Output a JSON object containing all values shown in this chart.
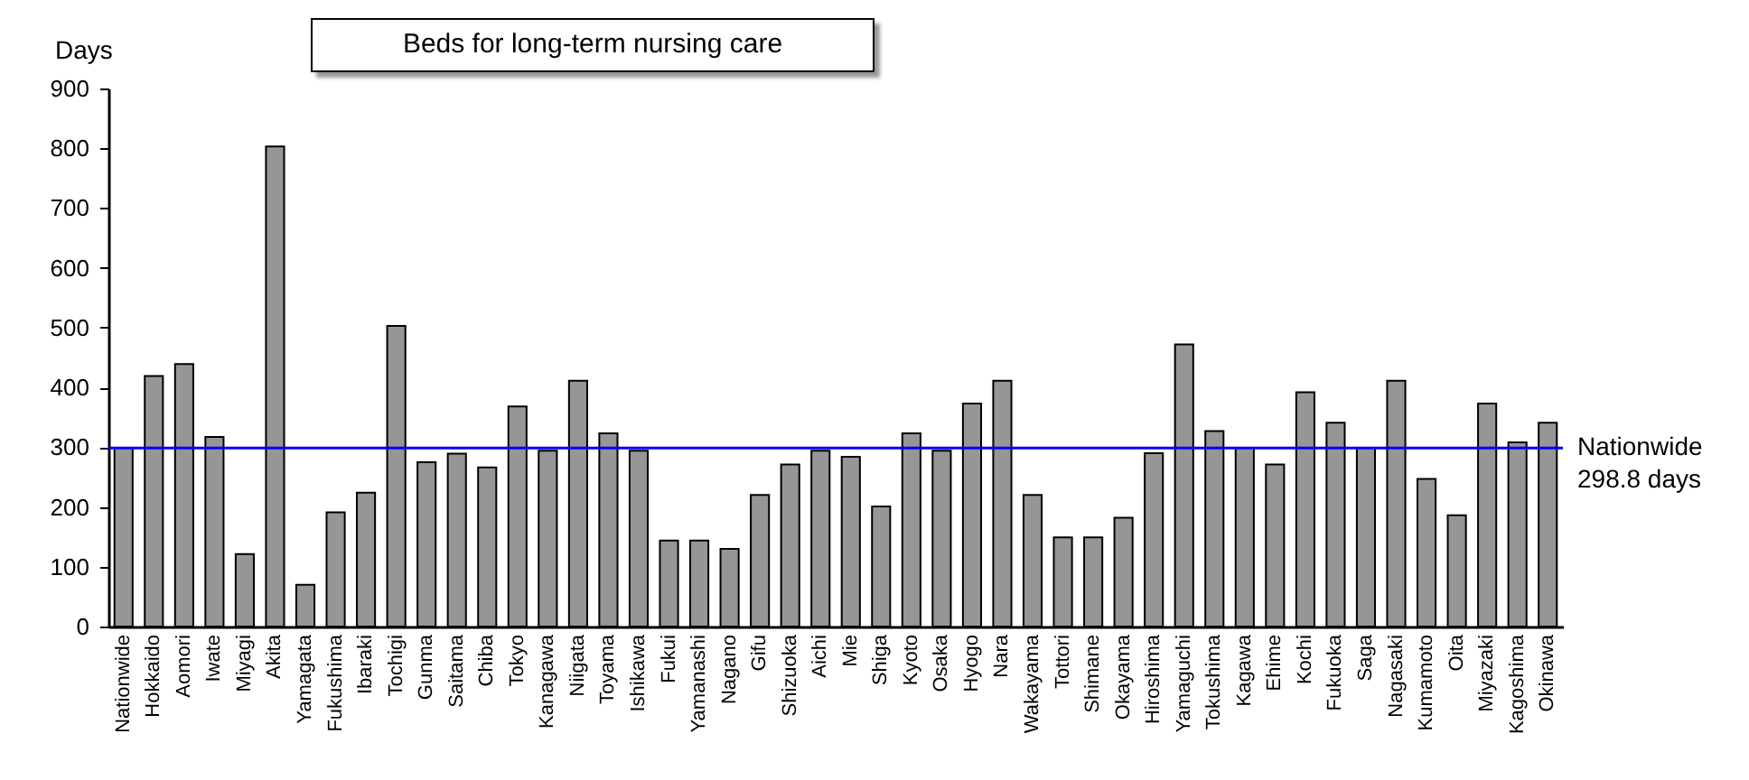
{
  "chart_data": {
    "type": "bar",
    "title": "Beds for long-term nursing care",
    "ylabel": "Days",
    "categories": [
      "Nationwide",
      "Hokkaido",
      "Aomori",
      "Iwate",
      "Miyagi",
      "Akita",
      "Yamagata",
      "Fukushima",
      "Ibaraki",
      "Tochigi",
      "Gunma",
      "Saitama",
      "Chiba",
      "Tokyo",
      "Kanagawa",
      "Niigata",
      "Toyama",
      "Ishikawa",
      "Fukui",
      "Yamanashi",
      "Nagano",
      "Gifu",
      "Shizuoka",
      "Aichi",
      "Mie",
      "Shiga",
      "Kyoto",
      "Osaka",
      "Hyogo",
      "Nara",
      "Wakayama",
      "Tottori",
      "Shimane",
      "Okayama",
      "Hiroshima",
      "Yamaguchi",
      "Tokushima",
      "Kagawa",
      "Ehime",
      "Kochi",
      "Fukuoka",
      "Saga",
      "Nagasaki",
      "Kumamoto",
      "Oita",
      "Miyazaki",
      "Kagoshima",
      "Okinawa"
    ],
    "values": [
      299,
      419,
      439,
      317,
      121,
      803,
      70,
      191,
      224,
      503,
      275,
      289,
      266,
      368,
      294,
      411,
      323,
      294,
      144,
      144,
      130,
      220,
      271,
      294,
      284,
      201,
      323,
      294,
      373,
      411,
      220,
      149,
      149,
      182,
      290,
      472,
      327,
      299,
      271,
      392,
      341,
      299,
      411,
      247,
      186,
      373,
      308,
      341
    ],
    "color": "#969696",
    "ylim": [
      0,
      900
    ],
    "yticks": [
      0,
      100,
      200,
      300,
      400,
      500,
      600,
      700,
      800,
      900
    ],
    "ref_lines": [
      {
        "axis": "y",
        "value": 298.8,
        "label": "Nationwide\n298.8 days",
        "color": "#0000ff"
      }
    ]
  }
}
